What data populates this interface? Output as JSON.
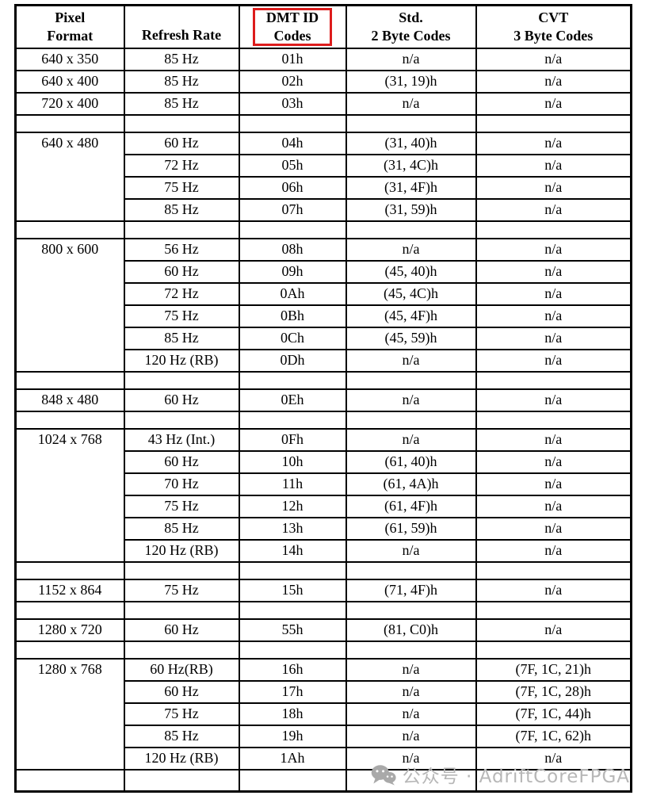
{
  "table": {
    "headers": [
      {
        "lines": [
          "Pixel",
          "Format"
        ]
      },
      {
        "lines": [
          "Refresh Rate"
        ]
      },
      {
        "lines": [
          "DMT ID",
          "Codes"
        ],
        "highlighted": true
      },
      {
        "lines": [
          "Std.",
          "2 Byte Codes"
        ]
      },
      {
        "lines": [
          "CVT",
          "3 Byte Codes"
        ]
      }
    ],
    "highlight_color": "#dd1c1c",
    "columns": [
      "pixel_format",
      "refresh_rate",
      "dmt_id_code",
      "std_2_byte_code",
      "cvt_3_byte_code"
    ],
    "groups": [
      {
        "pixel_format": "640 x 350",
        "rows": [
          {
            "refresh_rate": "85 Hz",
            "dmt_id": "01h",
            "std": "n/a",
            "cvt": "n/a"
          }
        ]
      },
      {
        "pixel_format": "640 x 400",
        "rows": [
          {
            "refresh_rate": "85 Hz",
            "dmt_id": "02h",
            "std": "(31, 19)h",
            "cvt": "n/a"
          }
        ]
      },
      {
        "pixel_format": "720 x 400",
        "rows": [
          {
            "refresh_rate": "85 Hz",
            "dmt_id": "03h",
            "std": "n/a",
            "cvt": "n/a"
          }
        ]
      },
      {
        "spacer": true
      },
      {
        "pixel_format": "640 x 480",
        "rows": [
          {
            "refresh_rate": "60 Hz",
            "dmt_id": "04h",
            "std": "(31, 40)h",
            "cvt": "n/a"
          },
          {
            "refresh_rate": "72 Hz",
            "dmt_id": "05h",
            "std": "(31, 4C)h",
            "cvt": "n/a"
          },
          {
            "refresh_rate": "75 Hz",
            "dmt_id": "06h",
            "std": "(31, 4F)h",
            "cvt": "n/a"
          },
          {
            "refresh_rate": "85 Hz",
            "dmt_id": "07h",
            "std": "(31, 59)h",
            "cvt": "n/a"
          }
        ]
      },
      {
        "spacer": true
      },
      {
        "pixel_format": "800 x 600",
        "rows": [
          {
            "refresh_rate": "56 Hz",
            "dmt_id": "08h",
            "std": "n/a",
            "cvt": "n/a"
          },
          {
            "refresh_rate": "60 Hz",
            "dmt_id": "09h",
            "std": "(45, 40)h",
            "cvt": "n/a"
          },
          {
            "refresh_rate": "72 Hz",
            "dmt_id": "0Ah",
            "std": "(45, 4C)h",
            "cvt": "n/a"
          },
          {
            "refresh_rate": "75 Hz",
            "dmt_id": "0Bh",
            "std": "(45, 4F)h",
            "cvt": "n/a"
          },
          {
            "refresh_rate": "85 Hz",
            "dmt_id": "0Ch",
            "std": "(45, 59)h",
            "cvt": "n/a"
          },
          {
            "refresh_rate": "120 Hz (RB)",
            "dmt_id": "0Dh",
            "std": "n/a",
            "cvt": "n/a"
          }
        ]
      },
      {
        "spacer": true
      },
      {
        "pixel_format": "848 x 480",
        "rows": [
          {
            "refresh_rate": "60 Hz",
            "dmt_id": "0Eh",
            "std": "n/a",
            "cvt": "n/a"
          }
        ]
      },
      {
        "spacer": true
      },
      {
        "pixel_format": "1024 x 768",
        "rows": [
          {
            "refresh_rate": "43 Hz (Int.)",
            "dmt_id": "0Fh",
            "std": "n/a",
            "cvt": "n/a"
          },
          {
            "refresh_rate": "60 Hz",
            "dmt_id": "10h",
            "std": "(61, 40)h",
            "cvt": "n/a"
          },
          {
            "refresh_rate": "70 Hz",
            "dmt_id": "11h",
            "std": "(61, 4A)h",
            "cvt": "n/a"
          },
          {
            "refresh_rate": "75 Hz",
            "dmt_id": "12h",
            "std": "(61, 4F)h",
            "cvt": "n/a"
          },
          {
            "refresh_rate": "85 Hz",
            "dmt_id": "13h",
            "std": "(61, 59)h",
            "cvt": "n/a"
          },
          {
            "refresh_rate": "120 Hz (RB)",
            "dmt_id": "14h",
            "std": "n/a",
            "cvt": "n/a"
          }
        ]
      },
      {
        "spacer": true
      },
      {
        "pixel_format": "1152 x 864",
        "rows": [
          {
            "refresh_rate": "75 Hz",
            "dmt_id": "15h",
            "std": "(71, 4F)h",
            "cvt": "n/a"
          }
        ]
      },
      {
        "spacer": true
      },
      {
        "pixel_format": "1280 x 720",
        "rows": [
          {
            "refresh_rate": "60 Hz",
            "dmt_id": "55h",
            "std": "(81, C0)h",
            "cvt": "n/a"
          }
        ]
      },
      {
        "spacer": true
      },
      {
        "pixel_format": "1280 x 768",
        "rows": [
          {
            "refresh_rate": "60 Hz(RB)",
            "dmt_id": "16h",
            "std": "n/a",
            "cvt": "(7F, 1C, 21)h"
          },
          {
            "refresh_rate": "60 Hz",
            "dmt_id": "17h",
            "std": "n/a",
            "cvt": "(7F, 1C, 28)h"
          },
          {
            "refresh_rate": "75 Hz",
            "dmt_id": "18h",
            "std": "n/a",
            "cvt": "(7F, 1C, 44)h"
          },
          {
            "refresh_rate": "85 Hz",
            "dmt_id": "19h",
            "std": "n/a",
            "cvt": "(7F, 1C, 62)h"
          },
          {
            "refresh_rate": "120 Hz (RB)",
            "dmt_id": "1Ah",
            "std": "n/a",
            "cvt": "n/a"
          }
        ]
      },
      {
        "spacer": true,
        "bottom": true
      }
    ]
  },
  "watermark": {
    "icon": "wechat-icon",
    "text": "公众号 · AdriftCoreFPGA",
    "color": "#b7b7b7",
    "icon_color": "#a9a9a9"
  }
}
